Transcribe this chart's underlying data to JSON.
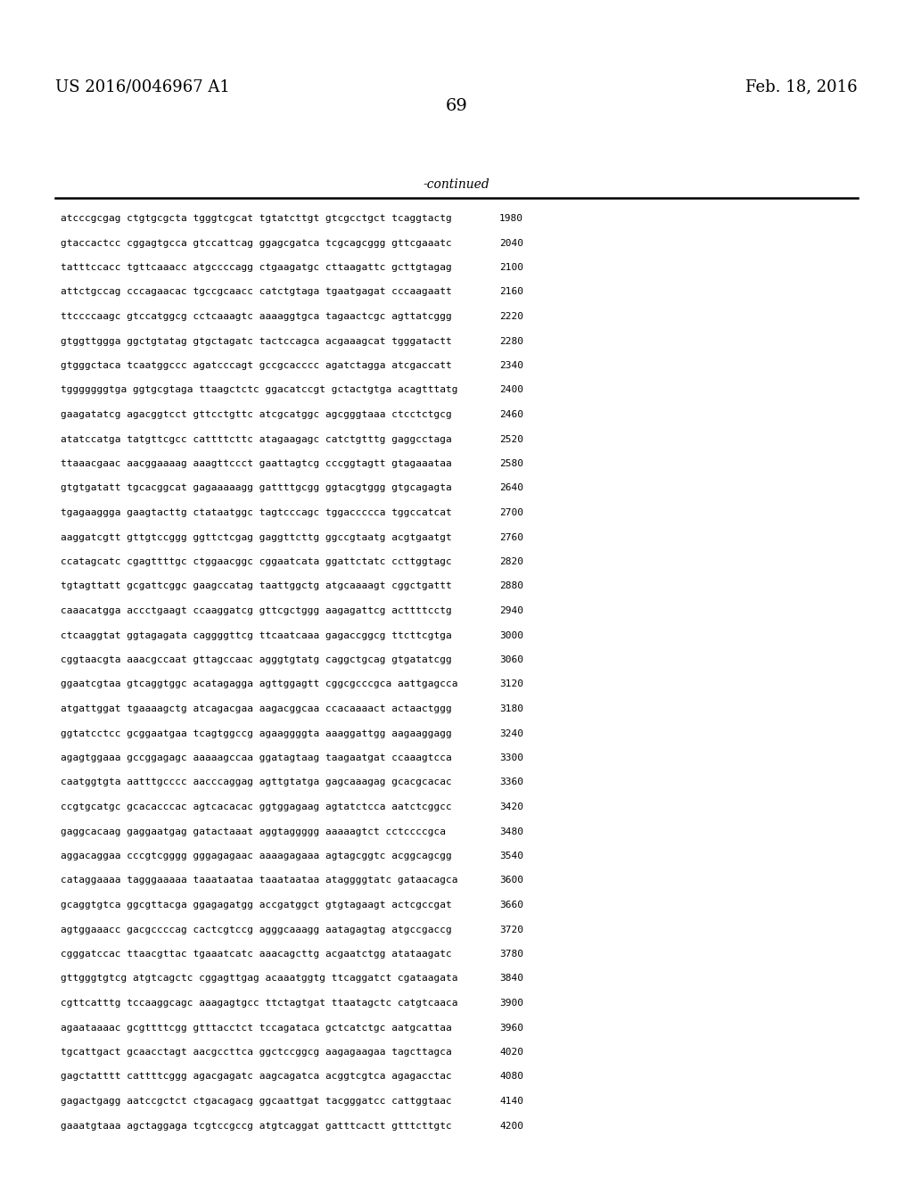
{
  "header_left": "US 2016/0046967 A1",
  "header_right": "Feb. 18, 2016",
  "page_number": "69",
  "continued_label": "-continued",
  "background_color": "#ffffff",
  "text_color": "#000000",
  "sequences": [
    {
      "seq": "atcccgcgag ctgtgcgcta tgggtcgcat tgtatcttgt gtcgcctgct tcaggtactg",
      "num": "1980"
    },
    {
      "seq": "gtaccactcc cggagtgcca gtccattcag ggagcgatca tcgcagcggg gttcgaaatc",
      "num": "2040"
    },
    {
      "seq": "tatttccacc tgttcaaacc atgccccagg ctgaagatgc cttaagattc gcttgtagag",
      "num": "2100"
    },
    {
      "seq": "attctgccag cccagaacac tgccgcaacc catctgtaga tgaatgagat cccaagaatt",
      "num": "2160"
    },
    {
      "seq": "ttccccaagc gtccatggcg cctcaaagtc aaaaggtgca tagaactcgc agttatcggg",
      "num": "2220"
    },
    {
      "seq": "gtggttggga ggctgtatag gtgctagatc tactccagca acgaaagcat tgggatactt",
      "num": "2280"
    },
    {
      "seq": "gtgggctaca tcaatggccc agatcccagt gccgcacccc agatctagga atcgaccatt",
      "num": "2340"
    },
    {
      "seq": "tgggggggtga ggtgcgtaga ttaagctctc ggacatccgt gctactgtga acagtttatg",
      "num": "2400"
    },
    {
      "seq": "gaagatatcg agacggtcct gttcctgttc atcgcatggc agcgggtaaa ctcctctgcg",
      "num": "2460"
    },
    {
      "seq": "atatccatga tatgttcgcc cattttcttc atagaagagc catctgtttg gaggcctaga",
      "num": "2520"
    },
    {
      "seq": "ttaaacgaac aacggaaaag aaagttccct gaattagtcg cccggtagtt gtagaaataa",
      "num": "2580"
    },
    {
      "seq": "gtgtgatatt tgcacggcat gagaaaaagg gattttgcgg ggtacgtggg gtgcagagta",
      "num": "2640"
    },
    {
      "seq": "tgagaaggga gaagtacttg ctataatggc tagtcccagc tggaccccca tggccatcat",
      "num": "2700"
    },
    {
      "seq": "aaggatcgtt gttgtccggg ggttctcgag gaggttcttg ggccgtaatg acgtgaatgt",
      "num": "2760"
    },
    {
      "seq": "ccatagcatc cgagttttgc ctggaacggc cggaatcata ggattctatc ccttggtagc",
      "num": "2820"
    },
    {
      "seq": "tgtagttatt gcgattcggc gaagccatag taattggctg atgcaaaagt cggctgattt",
      "num": "2880"
    },
    {
      "seq": "caaacatgga accctgaagt ccaaggatcg gttcgctggg aagagattcg acttttcctg",
      "num": "2940"
    },
    {
      "seq": "ctcaaggtat ggtagagata caggggttcg ttcaatcaaa gagaccggcg ttcttcgtga",
      "num": "3000"
    },
    {
      "seq": "cggtaacgta aaacgccaat gttagccaac agggtgtatg caggctgcag gtgatatcgg",
      "num": "3060"
    },
    {
      "seq": "ggaatcgtaa gtcaggtggc acatagagga agttggagtt cggcgcccgca aattgagcca",
      "num": "3120"
    },
    {
      "seq": "atgattggat tgaaaagctg atcagacgaa aagacggcaa ccacaaaact actaactggg",
      "num": "3180"
    },
    {
      "seq": "ggtatcctcc gcggaatgaa tcagtggccg agaaggggta aaaggattgg aagaaggagg",
      "num": "3240"
    },
    {
      "seq": "agagtggaaa gccggagagc aaaaagccaa ggatagtaag taagaatgat ccaaagtcca",
      "num": "3300"
    },
    {
      "seq": "caatggtgta aatttgcccc aacccaggag agttgtatga gagcaaagag gcacgcacac",
      "num": "3360"
    },
    {
      "seq": "ccgtgcatgc gcacacccac agtcacacac ggtggagaag agtatctcca aatctcggcc",
      "num": "3420"
    },
    {
      "seq": "gaggcacaag gaggaatgag gatactaaat aggtaggggg aaaaagtct cctccccgca",
      "num": "3480"
    },
    {
      "seq": "aggacaggaa cccgtcgggg gggagagaac aaaagagaaa agtagcggtc acggcagcgg",
      "num": "3540"
    },
    {
      "seq": "cataggaaaa tagggaaaaa taaataataa taaataataa ataggggtatc gataacagca",
      "num": "3600"
    },
    {
      "seq": "gcaggtgtca ggcgttacga ggagagatgg accgatggct gtgtagaagt actcgccgat",
      "num": "3660"
    },
    {
      "seq": "agtggaaacc gacgccccag cactcgtccg agggcaaagg aatagagtag atgccgaccg",
      "num": "3720"
    },
    {
      "seq": "cgggatccac ttaacgttac tgaaatcatc aaacagcttg acgaatctgg atataagatc",
      "num": "3780"
    },
    {
      "seq": "gttgggtgtcg atgtcagctc cggagttgag acaaatggtg ttcaggatct cgataagata",
      "num": "3840"
    },
    {
      "seq": "cgttcatttg tccaaggcagc aaagagtgcc ttctagtgat ttaatagctc catgtcaaca",
      "num": "3900"
    },
    {
      "seq": "agaataaaac gcgttttcgg gtttacctct tccagataca gctcatctgc aatgcattaa",
      "num": "3960"
    },
    {
      "seq": "tgcattgact gcaacctagt aacgccttca ggctccggcg aagagaagaa tagcttagca",
      "num": "4020"
    },
    {
      "seq": "gagctatttt cattttcggg agacgagatc aagcagatca acggtcgtca agagacctac",
      "num": "4080"
    },
    {
      "seq": "gagactgagg aatccgctct ctgacagacg ggcaattgat tacgggatcc cattggtaac",
      "num": "4140"
    },
    {
      "seq": "gaaatgtaaa agctaggaga tcgtccgccg atgtcaggat gatttcactt gtttcttgtc",
      "num": "4200"
    }
  ],
  "fig_width": 10.24,
  "fig_height": 13.2,
  "dpi": 100
}
